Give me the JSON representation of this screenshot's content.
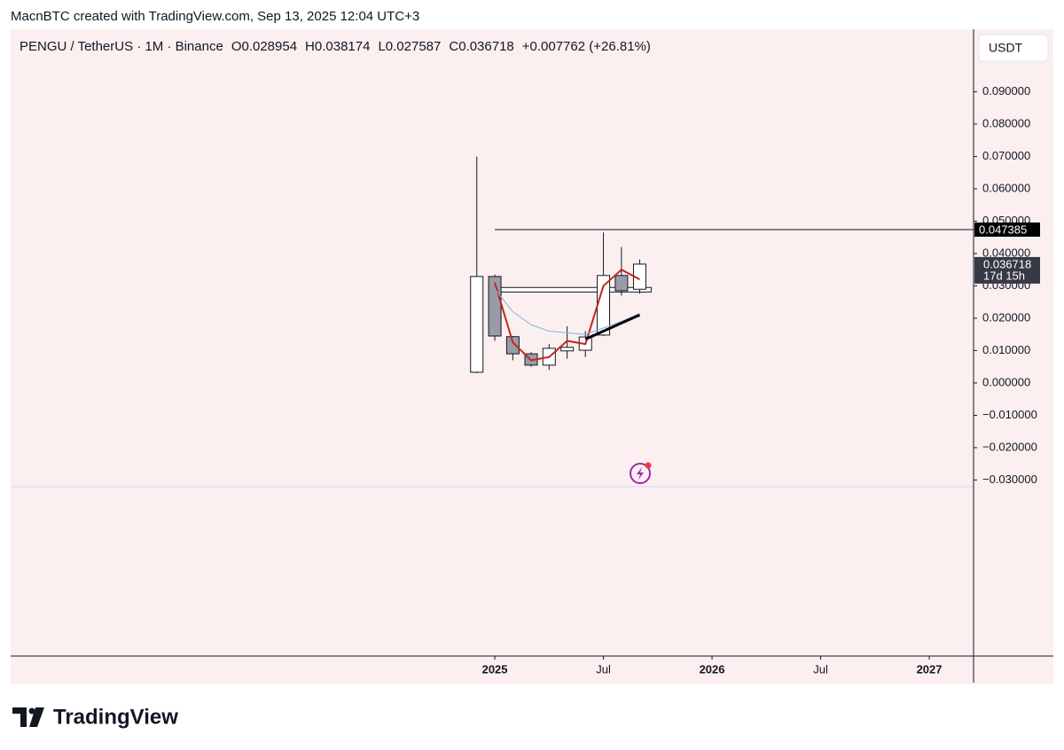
{
  "header": {
    "credit": "MacnBTC created with TradingView.com, Sep 13, 2025 12:04 UTC+3"
  },
  "chart_data": {
    "type": "candlestick",
    "legend": [
      "PENGU / TetherUS · 1M · Binance",
      "O0.028954",
      "H0.038174",
      "L0.027587",
      "C0.036718",
      "+0.007762 (+26.81%)"
    ],
    "currency": "USDT",
    "x": [
      2024.917,
      2025.0,
      2025.083,
      2025.167,
      2025.25,
      2025.333,
      2025.417,
      2025.5,
      2025.583,
      2025.667
    ],
    "open": [
      0.0033,
      0.0329,
      0.0143,
      0.009,
      0.0055,
      0.0099,
      0.0101,
      0.0148,
      0.0332,
      0.028954
    ],
    "high": [
      0.0699,
      0.0335,
      0.0145,
      0.0095,
      0.012,
      0.0175,
      0.016,
      0.0465,
      0.042,
      0.038174
    ],
    "low": [
      0.003,
      0.013,
      0.007,
      0.005,
      0.004,
      0.0075,
      0.008,
      0.0145,
      0.027,
      0.027587
    ],
    "close": [
      0.0329,
      0.0145,
      0.009,
      0.0055,
      0.0107,
      0.011,
      0.0142,
      0.0332,
      0.0285,
      0.036718
    ],
    "up_color": "#ffffff",
    "down_color": "#9a9aa8",
    "lines": [
      {
        "color": "#c0271d",
        "width": 2,
        "values": [
          null,
          0.031,
          0.0125,
          0.007,
          0.008,
          0.013,
          0.012,
          0.03,
          0.035,
          0.032
        ]
      },
      {
        "color": "#7fb6e0",
        "width": 1,
        "values": [
          null,
          0.029,
          0.022,
          0.018,
          0.016,
          0.0155,
          0.015,
          0.017,
          0.019,
          0.0215
        ]
      },
      {
        "color": "#000000",
        "width": 3,
        "values": [
          null,
          null,
          null,
          null,
          null,
          null,
          0.0135,
          0.016,
          0.0185,
          0.021
        ]
      }
    ],
    "zone": {
      "x": [
        2024.99,
        2025.72
      ],
      "y": [
        0.0281,
        0.0295
      ]
    },
    "level": {
      "x": 2025.0,
      "value": 0.047385
    },
    "last_price": {
      "value": 0.036718,
      "countdown": "17d 15h"
    },
    "xlim": [
      2022.771,
      2027.204
    ],
    "xticks": [
      2025,
      {
        "value": 2025.5,
        "label": "Jul"
      },
      2026,
      {
        "value": 2026.5,
        "label": "Jul"
      },
      2027
    ],
    "ylim": [
      -0.0844,
      0.1093
    ],
    "yticks": [
      {
        "value": 0.09,
        "label": "0.090000"
      },
      {
        "value": 0.08,
        "label": "0.080000"
      },
      {
        "value": 0.07,
        "label": "0.070000"
      },
      {
        "value": 0.06,
        "label": "0.060000"
      },
      {
        "value": 0.05,
        "label": "0.050000"
      },
      {
        "value": 0.04,
        "label": "0.040000"
      },
      {
        "value": 0.03,
        "label": "0.030000"
      },
      {
        "value": 0.02,
        "label": "0.020000"
      },
      {
        "value": 0.01,
        "label": "0.010000"
      },
      {
        "value": 0,
        "label": "0.000000"
      },
      {
        "value": -0.01,
        "label": "−0.010000"
      },
      {
        "value": -0.02,
        "label": "−0.020000"
      },
      {
        "value": -0.03,
        "label": "−0.030000"
      }
    ]
  },
  "footer": {
    "brand": "TradingView"
  }
}
